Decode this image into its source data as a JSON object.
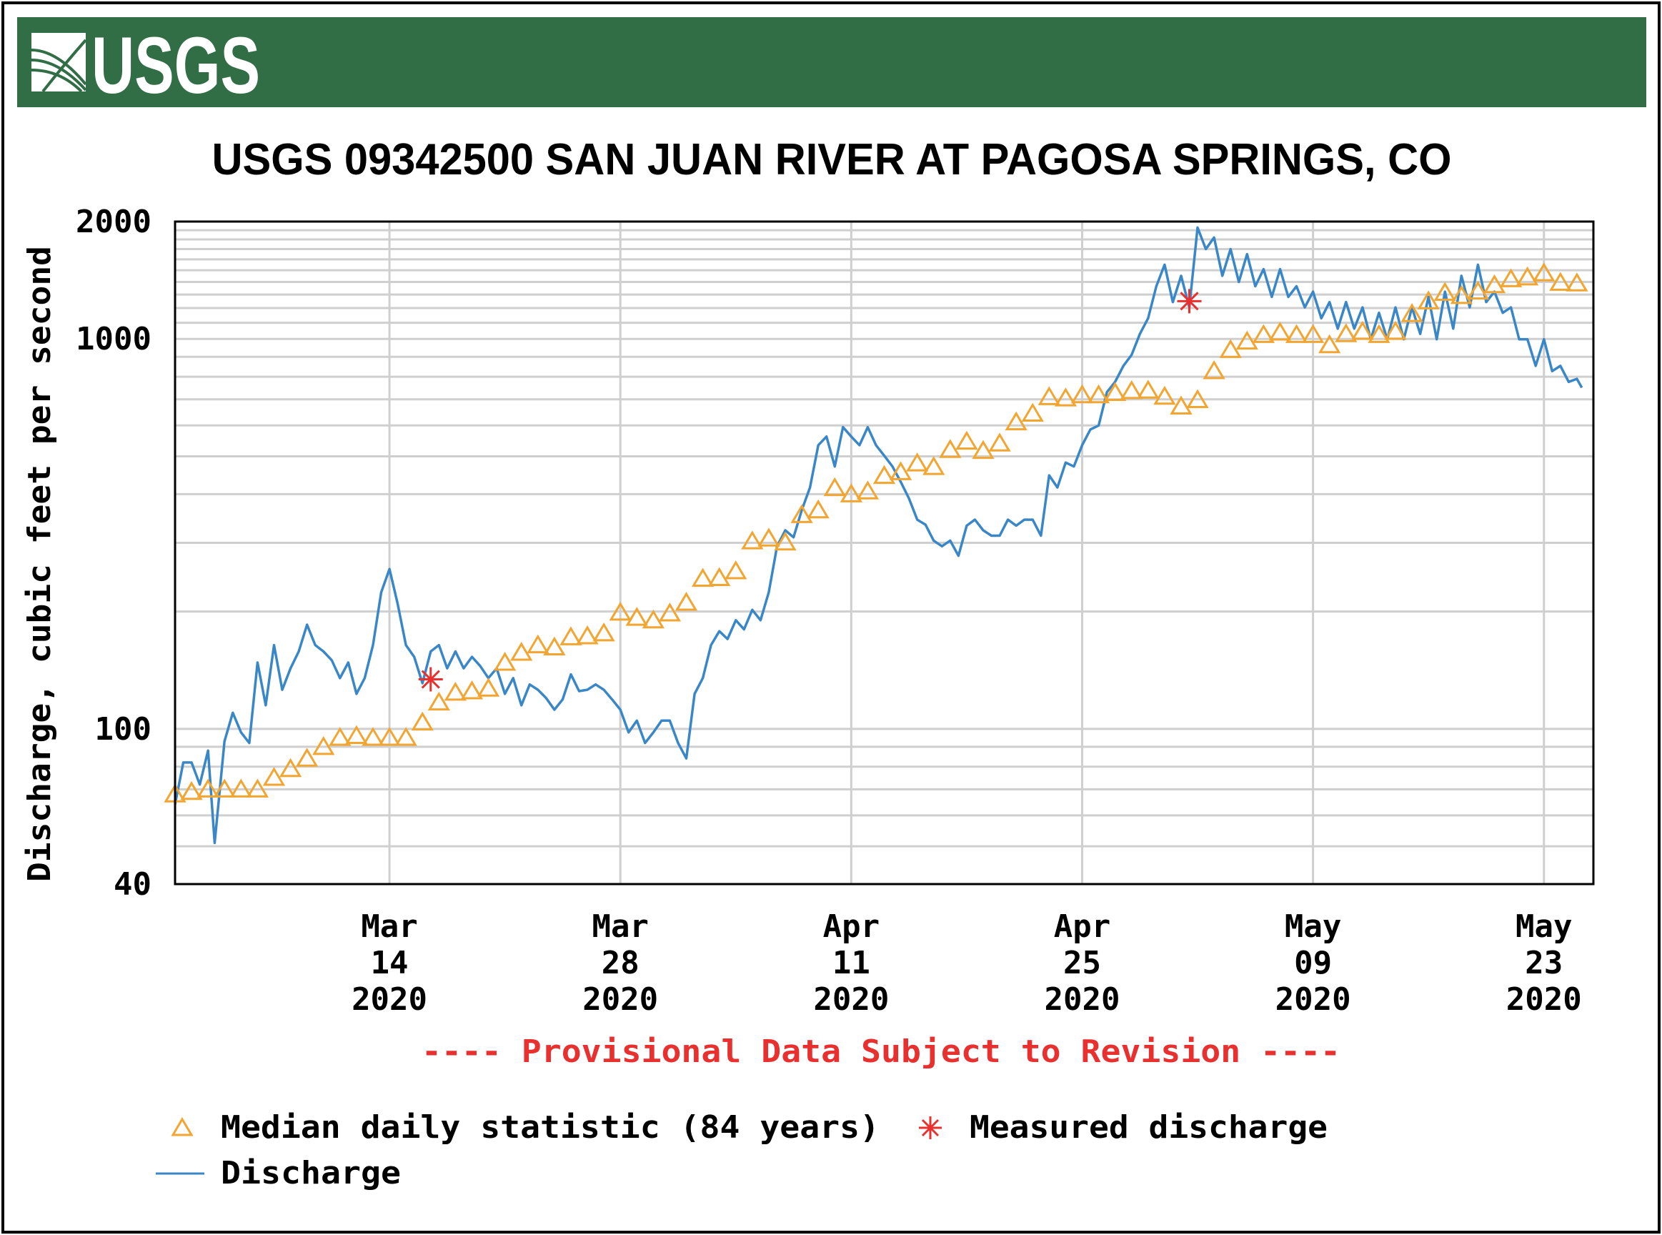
{
  "header": {
    "logo_text": "USGS",
    "banner_color": "#316d45"
  },
  "chart_data": {
    "type": "line",
    "title": "USGS 09342500 SAN JUAN RIVER AT PAGOSA SPRINGS, CO",
    "ylabel": "Discharge, cubic feet per second",
    "xlabel": "",
    "yscale": "log",
    "ylim": [
      40,
      2000
    ],
    "x_start_date": "2020-03-01",
    "xlim_days": [
      0,
      86
    ],
    "y_ticks": [
      {
        "value": 2000,
        "label": "2000"
      },
      {
        "value": 1000,
        "label": "1000"
      },
      {
        "value": 100,
        "label": "100"
      },
      {
        "value": 40,
        "label": "40"
      }
    ],
    "x_ticks": [
      {
        "day": 13,
        "month": "Mar",
        "dom": "14",
        "year": "2020"
      },
      {
        "day": 27,
        "month": "Mar",
        "dom": "28",
        "year": "2020"
      },
      {
        "day": 41,
        "month": "Apr",
        "dom": "11",
        "year": "2020"
      },
      {
        "day": 55,
        "month": "Apr",
        "dom": "25",
        "year": "2020"
      },
      {
        "day": 69,
        "month": "May",
        "dom": "09",
        "year": "2020"
      },
      {
        "day": 83,
        "month": "May",
        "dom": "23",
        "year": "2020"
      }
    ],
    "grid": true,
    "note": "---- Provisional Data Subject to Revision ----",
    "colors": {
      "discharge": "#3a87c8",
      "median": "#f2a531",
      "measured": "#e8302f",
      "note": "#e8302f"
    },
    "legend": {
      "placement": "bottom-left",
      "median_label": "Median daily statistic (84 years)",
      "measured_label": "Measured discharge",
      "discharge_label": "Discharge"
    },
    "series": [
      {
        "name": "Median daily statistic (84 years)",
        "marker": "triangle",
        "start_day": 0,
        "values": [
          68,
          69,
          70,
          70,
          70,
          70,
          75,
          79,
          84,
          90,
          95,
          96,
          95,
          95,
          95,
          104,
          117,
          124,
          125,
          127,
          148,
          157,
          164,
          162,
          172,
          173,
          176,
          199,
          193,
          190,
          198,
          211,
          243,
          244,
          254,
          303,
          308,
          301,
          354,
          364,
          415,
          400,
          407,
          446,
          456,
          480,
          470,
          520,
          546,
          517,
          540,
          612,
          644,
          710,
          705,
          718,
          718,
          728,
          736,
          738,
          712,
          672,
          698,
          828,
          938,
          986,
          1025,
          1040,
          1025,
          1025,
          965,
          1030,
          1045,
          1025,
          1045,
          1160,
          1250,
          1315,
          1290,
          1325,
          1375,
          1425,
          1440,
          1475,
          1395,
          1390
        ]
      },
      {
        "name": "Measured discharge",
        "marker": "asterisk",
        "points": [
          [
            15.5,
            134
          ],
          [
            61.5,
            1250
          ]
        ]
      },
      {
        "name": "Discharge",
        "marker": "line",
        "points": [
          [
            0,
            64
          ],
          [
            0.5,
            82
          ],
          [
            1,
            82
          ],
          [
            1.5,
            72
          ],
          [
            2,
            88
          ],
          [
            2.4,
            51
          ],
          [
            3,
            93
          ],
          [
            3.5,
            110
          ],
          [
            4,
            98
          ],
          [
            4.5,
            92
          ],
          [
            5,
            148
          ],
          [
            5.5,
            115
          ],
          [
            6,
            164
          ],
          [
            6.5,
            126
          ],
          [
            7,
            143
          ],
          [
            7.5,
            158
          ],
          [
            8,
            185
          ],
          [
            8.5,
            164
          ],
          [
            9,
            158
          ],
          [
            9.5,
            150
          ],
          [
            10,
            135
          ],
          [
            10.5,
            148
          ],
          [
            11,
            123
          ],
          [
            11.5,
            135
          ],
          [
            12,
            164
          ],
          [
            12.5,
            224
          ],
          [
            13,
            257
          ],
          [
            13.5,
            209
          ],
          [
            14,
            164
          ],
          [
            14.5,
            153
          ],
          [
            15,
            131
          ],
          [
            15.5,
            158
          ],
          [
            16,
            164
          ],
          [
            16.5,
            143
          ],
          [
            17,
            158
          ],
          [
            17.5,
            143
          ],
          [
            18,
            153
          ],
          [
            18.5,
            145
          ],
          [
            19,
            135
          ],
          [
            19.5,
            143
          ],
          [
            20,
            123
          ],
          [
            20.5,
            135
          ],
          [
            21,
            115
          ],
          [
            21.5,
            130
          ],
          [
            22,
            126
          ],
          [
            22.5,
            120
          ],
          [
            23,
            112
          ],
          [
            23.5,
            119
          ],
          [
            24,
            138
          ],
          [
            24.5,
            125
          ],
          [
            25,
            126
          ],
          [
            25.5,
            130
          ],
          [
            26,
            126
          ],
          [
            26.5,
            119
          ],
          [
            27,
            112
          ],
          [
            27.5,
            98
          ],
          [
            28,
            105
          ],
          [
            28.5,
            92
          ],
          [
            29,
            98
          ],
          [
            29.5,
            105
          ],
          [
            30,
            105
          ],
          [
            30.5,
            92
          ],
          [
            31,
            84
          ],
          [
            31.5,
            123
          ],
          [
            32,
            135
          ],
          [
            32.5,
            164
          ],
          [
            33,
            178
          ],
          [
            33.5,
            170
          ],
          [
            34,
            190
          ],
          [
            34.5,
            180
          ],
          [
            35,
            202
          ],
          [
            35.5,
            190
          ],
          [
            36,
            224
          ],
          [
            36.5,
            294
          ],
          [
            37,
            323
          ],
          [
            37.5,
            310
          ],
          [
            38,
            364
          ],
          [
            38.5,
            416
          ],
          [
            39,
            534
          ],
          [
            39.5,
            562
          ],
          [
            40,
            471
          ],
          [
            40.5,
            594
          ],
          [
            41,
            562
          ],
          [
            41.5,
            534
          ],
          [
            42,
            594
          ],
          [
            42.5,
            534
          ],
          [
            43,
            502
          ],
          [
            43.5,
            471
          ],
          [
            44,
            430
          ],
          [
            44.5,
            390
          ],
          [
            45,
            344
          ],
          [
            45.5,
            334
          ],
          [
            46,
            304
          ],
          [
            46.5,
            294
          ],
          [
            47,
            304
          ],
          [
            47.5,
            278
          ],
          [
            48,
            332
          ],
          [
            48.5,
            344
          ],
          [
            49,
            323
          ],
          [
            49.5,
            313
          ],
          [
            50,
            313
          ],
          [
            50.5,
            344
          ],
          [
            51,
            332
          ],
          [
            51.5,
            344
          ],
          [
            52,
            344
          ],
          [
            52.5,
            313
          ],
          [
            53,
            447
          ],
          [
            53.5,
            416
          ],
          [
            54,
            482
          ],
          [
            54.5,
            471
          ],
          [
            55,
            534
          ],
          [
            55.5,
            586
          ],
          [
            56,
            600
          ],
          [
            56.5,
            730
          ],
          [
            57,
            776
          ],
          [
            57.5,
            853
          ],
          [
            58,
            910
          ],
          [
            58.5,
            1030
          ],
          [
            59,
            1130
          ],
          [
            59.5,
            1365
          ],
          [
            60,
            1550
          ],
          [
            60.5,
            1243
          ],
          [
            61,
            1452
          ],
          [
            61.5,
            1205
          ],
          [
            62,
            1930
          ],
          [
            62.5,
            1700
          ],
          [
            63,
            1820
          ],
          [
            63.5,
            1452
          ],
          [
            64,
            1700
          ],
          [
            64.5,
            1400
          ],
          [
            65,
            1650
          ],
          [
            65.5,
            1365
          ],
          [
            66,
            1510
          ],
          [
            66.5,
            1282
          ],
          [
            67,
            1510
          ],
          [
            67.5,
            1282
          ],
          [
            68,
            1365
          ],
          [
            68.5,
            1205
          ],
          [
            69,
            1322
          ],
          [
            69.5,
            1130
          ],
          [
            70,
            1243
          ],
          [
            70.5,
            1063
          ],
          [
            71,
            1243
          ],
          [
            71.5,
            1063
          ],
          [
            72,
            1205
          ],
          [
            72.5,
            998
          ],
          [
            73,
            1167
          ],
          [
            73.5,
            998
          ],
          [
            74,
            1205
          ],
          [
            74.5,
            998
          ],
          [
            75,
            1205
          ],
          [
            75.5,
            1030
          ],
          [
            76,
            1282
          ],
          [
            76.5,
            998
          ],
          [
            77,
            1322
          ],
          [
            77.5,
            1063
          ],
          [
            78,
            1452
          ],
          [
            78.5,
            1205
          ],
          [
            79,
            1550
          ],
          [
            79.5,
            1243
          ],
          [
            80,
            1322
          ],
          [
            80.5,
            1167
          ],
          [
            81,
            1205
          ],
          [
            81.5,
            998
          ],
          [
            82,
            998
          ],
          [
            82.5,
            853
          ],
          [
            83,
            998
          ],
          [
            83.5,
            827
          ],
          [
            84,
            853
          ],
          [
            84.5,
            776
          ],
          [
            85,
            790
          ],
          [
            85.3,
            750
          ]
        ]
      }
    ]
  }
}
